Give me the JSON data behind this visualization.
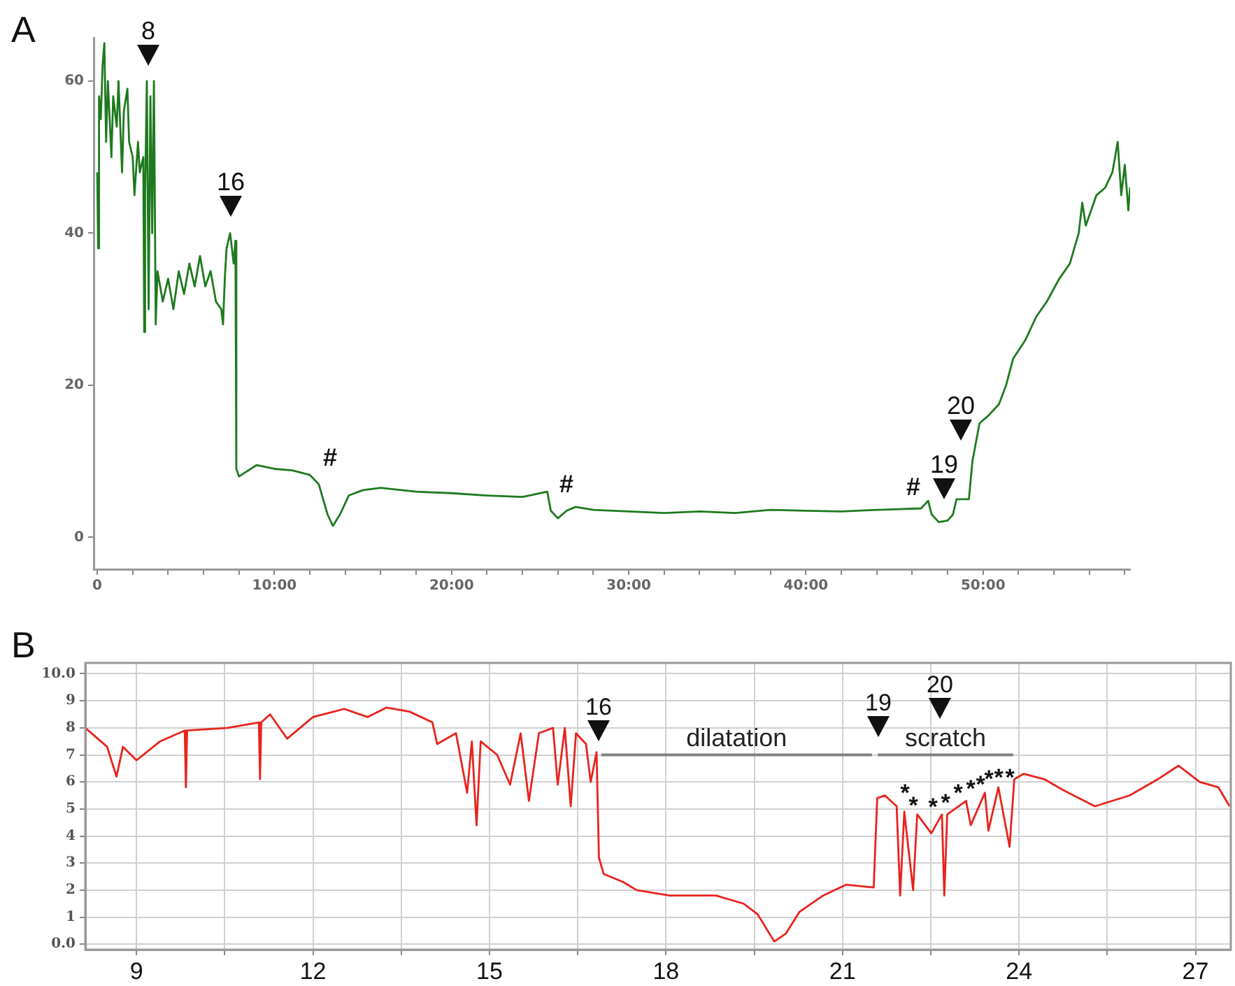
{
  "chart_data": [
    {
      "type": "line",
      "title": "A",
      "x": [
        0.0,
        0.05,
        0.1,
        0.2,
        0.3,
        0.4,
        0.5,
        0.6,
        0.8,
        0.9,
        1.1,
        1.2,
        1.4,
        1.5,
        1.7,
        1.8,
        2.0,
        2.1,
        2.3,
        2.4,
        2.6,
        2.65,
        2.7,
        2.8,
        2.9,
        3.0,
        3.1,
        3.2,
        3.3,
        3.4,
        3.7,
        4.0,
        4.3,
        4.6,
        4.9,
        5.2,
        5.5,
        5.8,
        6.1,
        6.4,
        6.7,
        7.0,
        7.1,
        7.2,
        7.3,
        7.5,
        7.7,
        7.8,
        7.85,
        8.0,
        9,
        10,
        11,
        12,
        12.5,
        13.0,
        13.3,
        13.7,
        14.2,
        15,
        16,
        18,
        20,
        22,
        24,
        25.4,
        25.6,
        26.0,
        26.5,
        27,
        28,
        30,
        32,
        34,
        36,
        38,
        40,
        42,
        44,
        46.5,
        46.9,
        47.1,
        47.5,
        48.0,
        48.3,
        48.5,
        49.2,
        49.4,
        49.8,
        50.3,
        50.9,
        51.3,
        51.7,
        52.4,
        53.0,
        53.6,
        54.3,
        54.9,
        55.4,
        55.6,
        55.8,
        56.4,
        56.9,
        57.3,
        57.6,
        57.8,
        58.0,
        58.2,
        58.3
      ],
      "series": [
        {
          "color": "#1e7a1e",
          "values": [
            48,
            38,
            58,
            55,
            62,
            65,
            52,
            60,
            50,
            58,
            54,
            60,
            48,
            56,
            59,
            52,
            50,
            45,
            52,
            48,
            50,
            27,
            45,
            60,
            30,
            58,
            40,
            60,
            28,
            35,
            31,
            34,
            30,
            35,
            32,
            36,
            33,
            37,
            33,
            35,
            31,
            30,
            28,
            34,
            38,
            40,
            36,
            39,
            9,
            8,
            9.5,
            9,
            8.8,
            8.2,
            7,
            3,
            1.5,
            3,
            5.5,
            6.2,
            6.5,
            6,
            5.8,
            5.5,
            5.3,
            6,
            3.5,
            2.5,
            3.5,
            4,
            3.6,
            3.4,
            3.2,
            3.4,
            3.2,
            3.6,
            3.5,
            3.4,
            3.6,
            3.8,
            4.8,
            3,
            2,
            2.2,
            3,
            5,
            5,
            10,
            15,
            16,
            17.5,
            20,
            23.5,
            26,
            29,
            31,
            34,
            36,
            40,
            44,
            41,
            45,
            46,
            48,
            52,
            45,
            49,
            43,
            46
          ]
        }
      ],
      "xlim": [
        -0.2,
        58.3
      ],
      "ylim": [
        -4.2,
        65.7
      ],
      "xticks": [
        0,
        {
          "value": 2,
          "label": null
        },
        {
          "value": 4,
          "label": null
        },
        {
          "value": 6,
          "label": null
        },
        {
          "value": 8,
          "label": null
        },
        {
          "value": 10,
          "label": "10:00"
        },
        {
          "value": 12,
          "label": null
        },
        {
          "value": 14,
          "label": null
        },
        {
          "value": 16,
          "label": null
        },
        {
          "value": 18,
          "label": null
        },
        {
          "value": 20,
          "label": "20:00"
        },
        {
          "value": 22,
          "label": null
        },
        {
          "value": 24,
          "label": null
        },
        {
          "value": 26,
          "label": null
        },
        {
          "value": 28,
          "label": null
        },
        {
          "value": 30,
          "label": "30:00"
        },
        {
          "value": 32,
          "label": null
        },
        {
          "value": 34,
          "label": null
        },
        {
          "value": 36,
          "label": null
        },
        {
          "value": 38,
          "label": null
        },
        {
          "value": 40,
          "label": "40:00"
        },
        {
          "value": 42,
          "label": null
        },
        {
          "value": 44,
          "label": null
        },
        {
          "value": 46,
          "label": null
        },
        {
          "value": 48,
          "label": null
        },
        {
          "value": 50,
          "label": "50:00"
        },
        {
          "value": 52,
          "label": null
        },
        {
          "value": 54,
          "label": null
        },
        {
          "value": 56,
          "label": null
        },
        {
          "value": 58,
          "label": null
        }
      ],
      "yticks": [
        0,
        20,
        40,
        60
      ],
      "annotations": [
        "8",
        "16",
        "#",
        "#",
        "#",
        "19",
        "20"
      ],
      "grid": false,
      "legend": false,
      "marker": "none",
      "line_style": "solid"
    },
    {
      "type": "line",
      "title": "B",
      "x": [
        8.13,
        8.5,
        8.66,
        8.77,
        9.0,
        9.4,
        9.82,
        9.84,
        9.86,
        10.55,
        11.08,
        11.1,
        11.12,
        11.27,
        11.56,
        12.0,
        12.53,
        12.93,
        13.25,
        13.64,
        14.03,
        14.11,
        14.43,
        14.62,
        14.7,
        14.78,
        14.85,
        15.13,
        15.35,
        15.53,
        15.67,
        15.84,
        16.08,
        16.16,
        16.28,
        16.38,
        16.47,
        16.64,
        16.72,
        16.82,
        16.86,
        16.94,
        17.27,
        17.5,
        18.06,
        18.85,
        19.32,
        19.56,
        19.84,
        20.04,
        20.27,
        20.67,
        21.06,
        21.53,
        21.59,
        21.72,
        21.92,
        21.98,
        22.05,
        22.2,
        22.27,
        22.51,
        22.69,
        22.73,
        22.78,
        23.1,
        23.18,
        23.42,
        23.48,
        23.65,
        23.84,
        23.92,
        24.08,
        24.43,
        24.75,
        25.29,
        25.88,
        26.36,
        26.71,
        27.07,
        27.39,
        27.58
      ],
      "series": [
        {
          "color": "#e8231e",
          "values": [
            8.0,
            7.3,
            6.2,
            7.3,
            6.8,
            7.5,
            7.9,
            5.8,
            7.9,
            8.0,
            8.2,
            6.1,
            8.2,
            8.5,
            7.6,
            8.4,
            8.7,
            8.4,
            8.75,
            8.6,
            8.2,
            7.4,
            7.8,
            5.6,
            7.5,
            4.4,
            7.5,
            7.0,
            5.9,
            7.8,
            5.3,
            7.8,
            8.0,
            5.9,
            8.0,
            5.1,
            7.8,
            7.4,
            6.0,
            7.1,
            3.2,
            2.6,
            2.3,
            2.0,
            1.8,
            1.8,
            1.5,
            1.1,
            0.1,
            0.4,
            1.2,
            1.8,
            2.2,
            2.1,
            5.4,
            5.5,
            5.1,
            1.8,
            4.9,
            2.0,
            4.8,
            4.1,
            4.8,
            1.8,
            4.8,
            5.3,
            4.4,
            5.6,
            4.2,
            5.8,
            3.6,
            6.1,
            6.3,
            6.1,
            5.7,
            5.1,
            5.5,
            6.1,
            6.6,
            6.0,
            5.8,
            5.1
          ]
        },
        {
          "type": "line",
          "name": "dilatation",
          "color": "#808080",
          "x": [
            16.9,
            21.5
          ],
          "values": [
            7.0,
            7.0
          ]
        },
        {
          "type": "line",
          "name": "scratch",
          "color": "#808080",
          "x": [
            21.6,
            23.9
          ],
          "values": [
            7.0,
            7.0
          ]
        }
      ],
      "xlim": [
        8.13,
        27.6
      ],
      "ylim": [
        -0.2,
        10.4
      ],
      "xticks": [
        9,
        {
          "value": 10.5,
          "label": null
        },
        12,
        {
          "value": 13.5,
          "label": null
        },
        15,
        {
          "value": 16.5,
          "label": null
        },
        18,
        {
          "value": 19.5,
          "label": null
        },
        21,
        {
          "value": 22.5,
          "label": null
        },
        24,
        {
          "value": 25.5,
          "label": null
        },
        27
      ],
      "yticks": [
        {
          "value": 0,
          "label": "0.0"
        },
        1,
        2,
        3,
        4,
        5,
        6,
        7,
        8,
        9,
        {
          "value": 10,
          "label": "10.0"
        }
      ],
      "annotations": [
        "16",
        "19",
        "20",
        "*",
        "*",
        "*",
        "*",
        "*",
        "*",
        "*",
        "*",
        "*",
        "*"
      ],
      "grid": true,
      "legend": false,
      "marker": "none",
      "line_style": "solid"
    }
  ]
}
